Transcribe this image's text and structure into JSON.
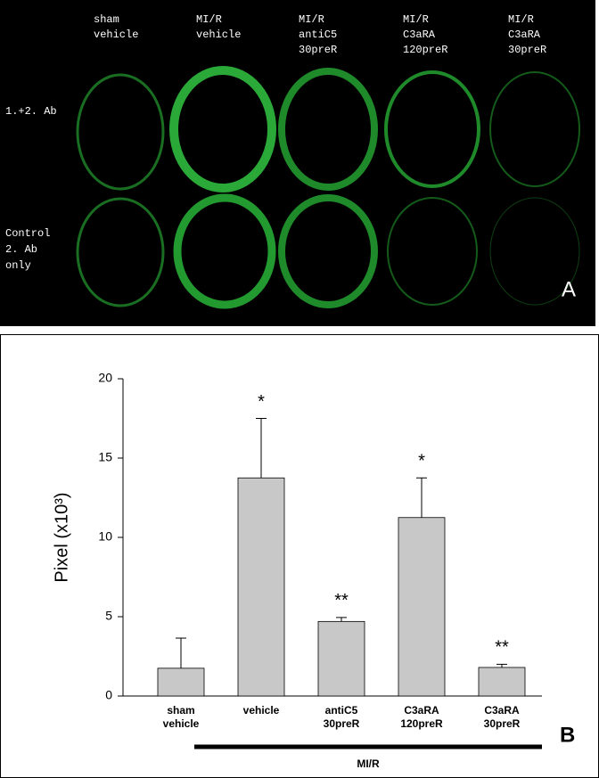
{
  "panel_a": {
    "column_labels": [
      [
        "sham",
        "vehicle"
      ],
      [
        "MI/R",
        "vehicle"
      ],
      [
        "MI/R",
        "antiC5",
        "30preR"
      ],
      [
        "MI/R",
        "C3aRA",
        "120preR"
      ],
      [
        "MI/R",
        "C3aRA",
        "30preR"
      ]
    ],
    "row_labels": [
      [
        "1.+2. Ab"
      ],
      [
        "Control",
        "2. Ab",
        "only"
      ]
    ],
    "panel_label": "A"
  },
  "chart_data": {
    "type": "bar",
    "ylabel": "Pixel (x10³)",
    "categories": [
      "sham vehicle",
      "vehicle",
      "antiC5 30preR",
      "C3aRA 120preR",
      "C3aRA 30preR"
    ],
    "values": [
      1.75,
      13.75,
      4.7,
      11.25,
      1.8
    ],
    "errors": [
      1.9,
      3.75,
      0.25,
      2.5,
      0.2
    ],
    "significance": [
      null,
      "*",
      "**",
      "*",
      "**"
    ],
    "color": "#c8c8c8",
    "group_label": "MI/R",
    "panel_label": "B",
    "ylim": [
      0,
      20
    ],
    "yticks": [
      0,
      5,
      10,
      15,
      20
    ],
    "grid": false
  }
}
